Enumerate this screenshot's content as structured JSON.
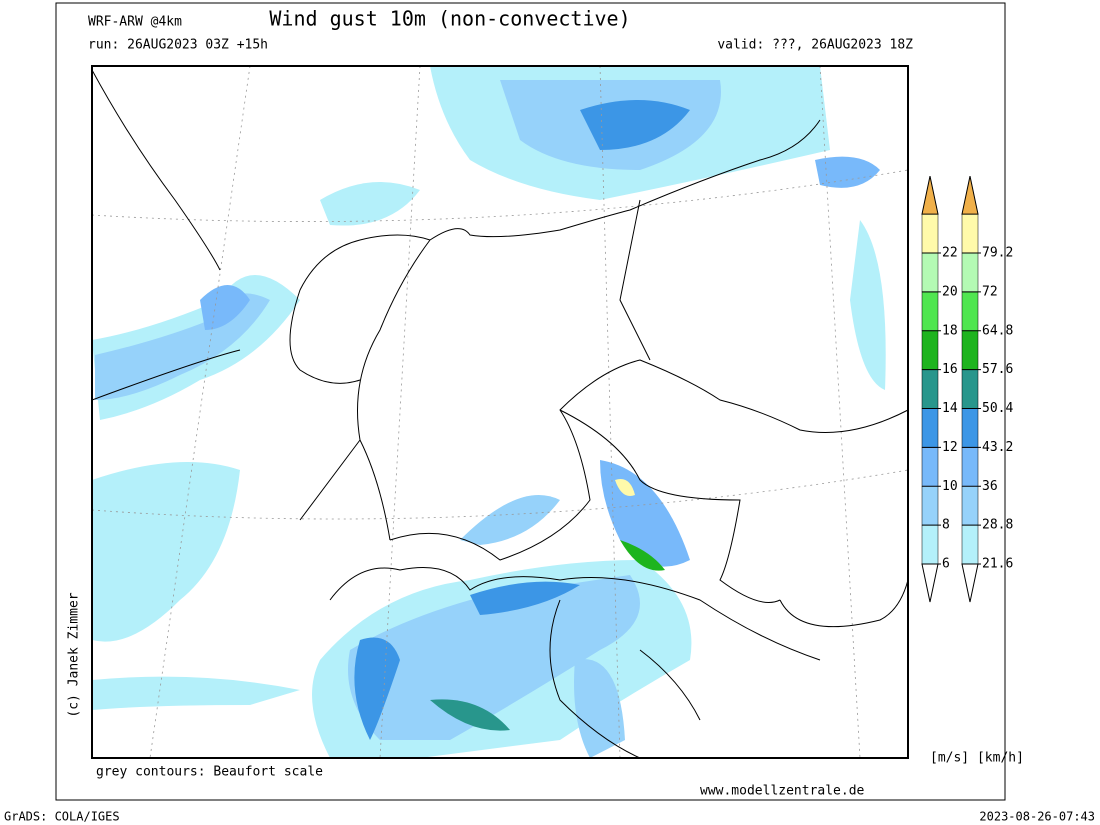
{
  "header": {
    "model": "WRF-ARW @4km",
    "title": "Wind gust 10m (non-convective)",
    "run": "run: 26AUG2023 03Z +15h",
    "valid": "valid: ???, 26AUG2023 18Z"
  },
  "credit": "(c) Janek Zimmer",
  "note": "grey contours: Beaufort scale",
  "website": "www.modellzentrale.de",
  "legend": {
    "units": "[m/s] [km/h]",
    "colors": [
      "#b4f0fa",
      "#96d2fa",
      "#78b9fa",
      "#3c96e6",
      "#28968c",
      "#1eb41e",
      "#50e650",
      "#b4fab4"
    ],
    "over_colors": [
      "#fffaaa",
      "#f0b04a"
    ],
    "under_color": "#ffffff",
    "scales": [
      {
        "ticks": [
          6,
          8,
          10,
          12,
          14,
          16,
          18,
          20,
          22
        ]
      },
      {
        "ticks": [
          21.6,
          28.8,
          36,
          43.2,
          50.4,
          57.6,
          64.8,
          72,
          79.2
        ]
      }
    ]
  },
  "footer": {
    "software": "GrADS: COLA/IGES",
    "timestamp": "2023-08-26-07:43"
  }
}
